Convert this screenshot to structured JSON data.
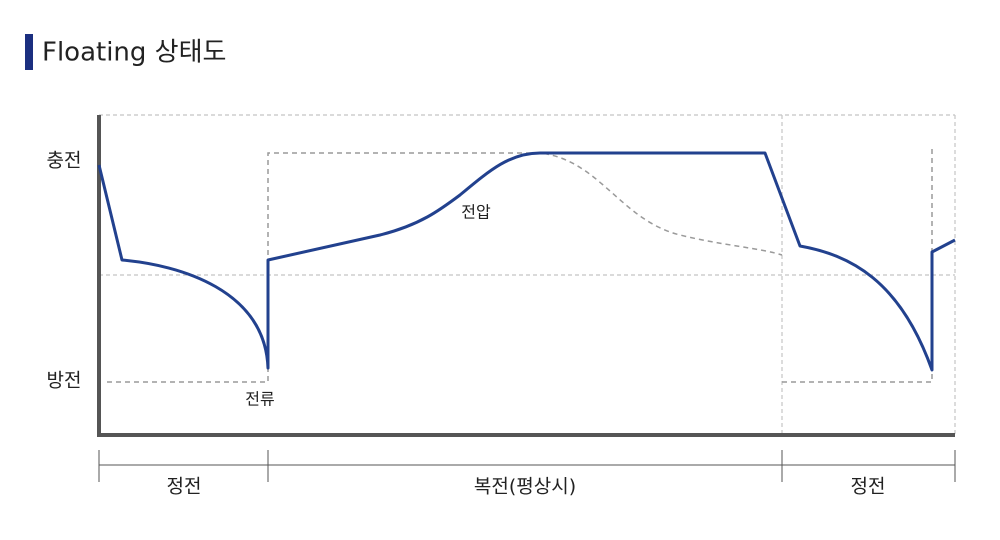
{
  "header": {
    "title": "Floating 상태도"
  },
  "diagram": {
    "y_labels": [
      "충전",
      "방전"
    ],
    "curve_labels": [
      "전압",
      "전류"
    ],
    "phases": [
      "정전",
      "복전(평상시)",
      "정전"
    ]
  }
}
